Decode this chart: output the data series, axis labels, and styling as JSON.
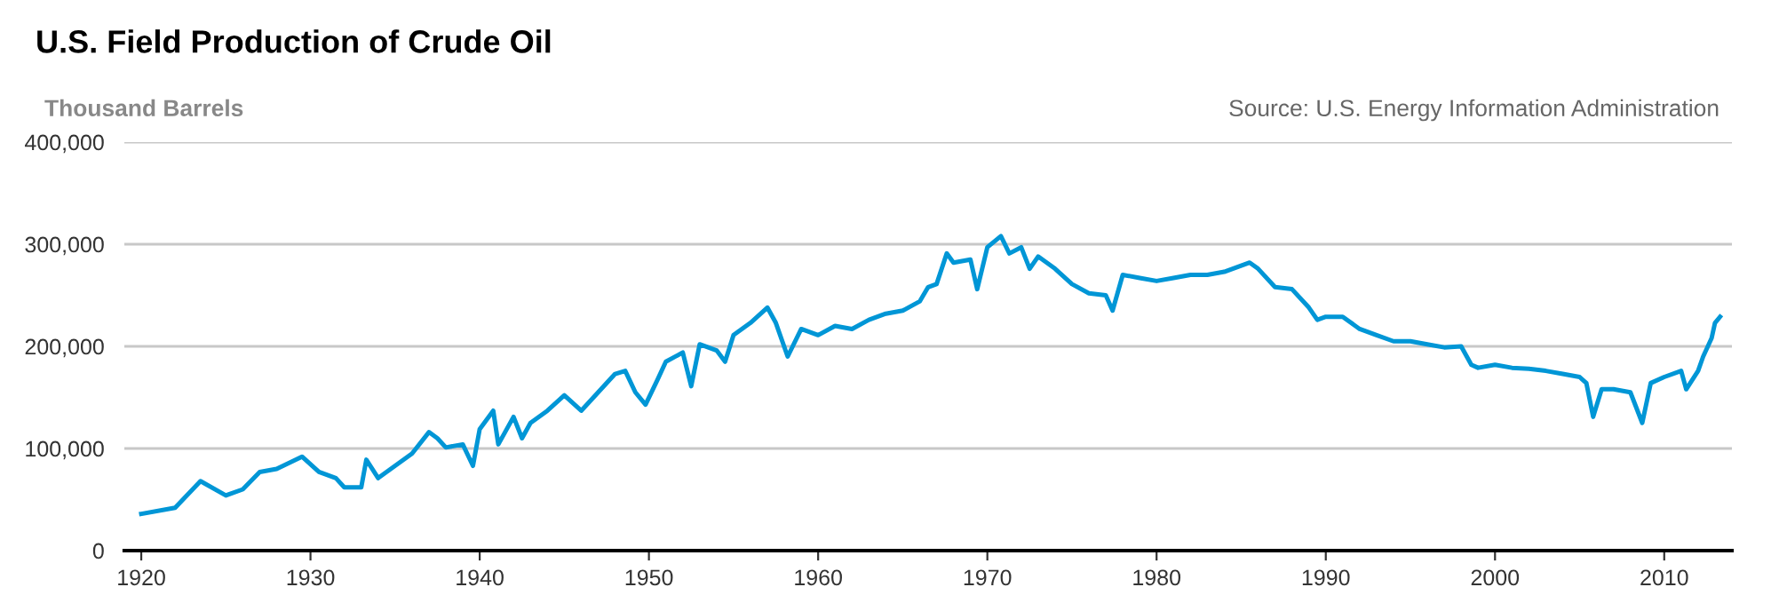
{
  "chart_data": {
    "type": "line",
    "title": "U.S. Field Production of Crude Oil",
    "ylabel": "Thousand Barrels",
    "annotations": [
      "Source: U.S. Energy Information Administration"
    ],
    "series": [
      {
        "color": "#0096d6",
        "x": [
          1920,
          1922,
          1923.5,
          1925,
          1926,
          1927,
          1928,
          1929.5,
          1930.5,
          1931.5,
          1932,
          1933,
          1933.3,
          1934,
          1935,
          1936,
          1937,
          1937.5,
          1938,
          1939,
          1939.6,
          1940,
          1940.8,
          1941.1,
          1942,
          1942.5,
          1943,
          1944,
          1945,
          1946,
          1947,
          1948,
          1948.6,
          1949.2,
          1949.8,
          1950.5,
          1951,
          1952,
          1952.5,
          1953,
          1954,
          1954.5,
          1955,
          1956,
          1957,
          1957.5,
          1958.2,
          1959,
          1960,
          1961,
          1962,
          1963,
          1964,
          1965,
          1966,
          1966.5,
          1967,
          1967.6,
          1968,
          1969,
          1969.4,
          1970,
          1970.8,
          1971.3,
          1972,
          1972.5,
          1973,
          1974,
          1975,
          1976,
          1977,
          1977.4,
          1978,
          1979,
          1980,
          1981,
          1982,
          1983,
          1984,
          1985,
          1985.5,
          1986,
          1987,
          1988,
          1989,
          1989.5,
          1990,
          1991,
          1992,
          1993,
          1994,
          1995,
          1996,
          1997,
          1998,
          1998.6,
          1999,
          2000,
          2001,
          2002,
          2003,
          2004,
          2005,
          2005.4,
          2005.8,
          2006.3,
          2007,
          2008,
          2008.7,
          2009.2,
          2010,
          2011,
          2011.3,
          2012,
          2012.3,
          2012.8,
          2013,
          2013.3
        ],
        "values": [
          36000,
          42000,
          68000,
          54000,
          60000,
          77000,
          80000,
          92000,
          77000,
          71000,
          62000,
          62000,
          89000,
          71000,
          83000,
          95000,
          116000,
          110000,
          101000,
          104000,
          83000,
          119000,
          137000,
          104000,
          131000,
          110000,
          125000,
          137000,
          152000,
          137000,
          155000,
          173000,
          176000,
          155000,
          143000,
          167000,
          185000,
          194000,
          161000,
          202000,
          196000,
          185000,
          211000,
          223000,
          238000,
          223000,
          190000,
          217000,
          211000,
          220000,
          217000,
          226000,
          232000,
          235000,
          244000,
          258000,
          261000,
          291000,
          282000,
          285000,
          256000,
          297000,
          308000,
          291000,
          297000,
          276000,
          288000,
          276000,
          261000,
          252000,
          250000,
          235000,
          270000,
          267000,
          264000,
          267000,
          270000,
          270000,
          273000,
          279000,
          282000,
          276000,
          258000,
          256000,
          238000,
          226000,
          229000,
          229000,
          217000,
          211000,
          205000,
          205000,
          202000,
          199000,
          200000,
          182000,
          179000,
          182000,
          179000,
          178000,
          176000,
          173000,
          170000,
          164000,
          131000,
          158000,
          158000,
          155000,
          125000,
          164000,
          170000,
          176000,
          158000,
          176000,
          190000,
          208000,
          223000,
          229000
        ]
      }
    ],
    "xlim": [
      1919,
      2014
    ],
    "xticks": [
      1920,
      1930,
      1940,
      1950,
      1960,
      1970,
      1980,
      1990,
      2000,
      2010
    ],
    "ylim": [
      0,
      400000
    ],
    "yticks": [
      0,
      {
        "value": 100000,
        "label": "100,000"
      },
      {
        "value": 200000,
        "label": "200,000"
      },
      {
        "value": 300000,
        "label": "300,000"
      },
      {
        "value": 400000,
        "label": "400,000"
      }
    ],
    "grid": "y",
    "line_style": "solid",
    "marker": "none"
  }
}
